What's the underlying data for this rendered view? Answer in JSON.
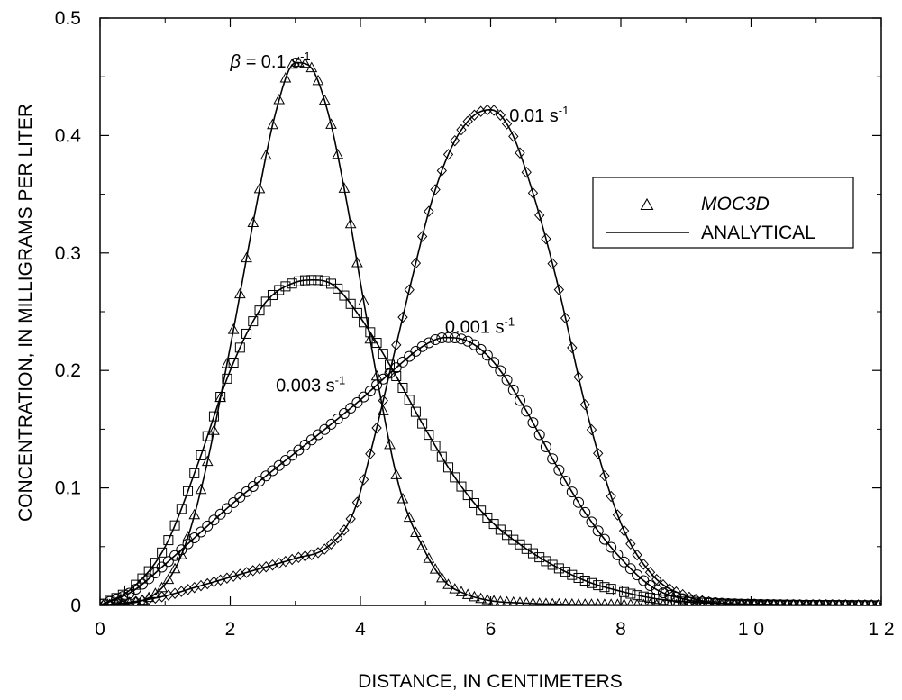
{
  "chart_data": {
    "type": "scatter",
    "title": "",
    "xlabel": "DISTANCE, IN CENTIMETERS",
    "ylabel": "CONCENTRATION, IN MILLIGRAMS PER LITER",
    "xlim": [
      0,
      12
    ],
    "ylim": [
      0,
      0.5
    ],
    "x_ticks": [
      0,
      2,
      4,
      6,
      8,
      10,
      12
    ],
    "x_tick_labels": [
      "0",
      "2",
      "4",
      "6",
      "8",
      "1 0",
      "1 2"
    ],
    "y_ticks": [
      0,
      0.1,
      0.2,
      0.3,
      0.4,
      0.5
    ],
    "y_tick_labels": [
      "0",
      "0.1",
      "0.2",
      "0.3",
      "0.4",
      "0.5"
    ],
    "grid": false,
    "legend": {
      "placement": "right",
      "entries": [
        {
          "label": "MOC3D",
          "symbol": "triangle"
        },
        {
          "label": "ANALYTICAL",
          "symbol": "line"
        }
      ]
    },
    "series": [
      {
        "annotation": {
          "prefix": "β = ",
          "text": "0.1 s",
          "sup": "-1"
        },
        "marker": "triangle",
        "analytical": {
          "x": [
            0,
            0.5,
            1,
            1.3,
            1.6,
            2,
            2.4,
            2.7,
            3,
            3.2,
            3.5,
            3.8,
            4,
            4.3,
            4.6,
            5,
            5.3,
            5.6,
            6,
            6.5,
            7,
            8,
            9,
            10,
            12
          ],
          "y": [
            0,
            0.002,
            0.018,
            0.05,
            0.11,
            0.22,
            0.34,
            0.42,
            0.462,
            0.46,
            0.42,
            0.34,
            0.275,
            0.18,
            0.1,
            0.045,
            0.02,
            0.01,
            0.004,
            0.002,
            0.001,
            0.0005,
            0.0002,
            0.0001,
            0
          ]
        }
      },
      {
        "annotation": {
          "prefix": "",
          "text": "0.01 s",
          "sup": "-1"
        },
        "marker": "square",
        "analytical": {
          "x": [
            0,
            0.5,
            1,
            1.5,
            2,
            2.5,
            3,
            3.3,
            3.6,
            4,
            4.5,
            5,
            5.5,
            6,
            6.5,
            7,
            7.5,
            8,
            8.5,
            9,
            10,
            12
          ],
          "y": [
            0,
            0.015,
            0.05,
            0.12,
            0.2,
            0.255,
            0.275,
            0.277,
            0.272,
            0.245,
            0.2,
            0.15,
            0.105,
            0.072,
            0.05,
            0.033,
            0.02,
            0.012,
            0.006,
            0.003,
            0.001,
            0
          ]
        }
      },
      {
        "annotation": {
          "prefix": "",
          "text": "0.003 s",
          "sup": "-1"
        },
        "marker": "circle",
        "analytical": {
          "x": [
            0,
            0.5,
            1,
            1.5,
            2,
            2.5,
            3,
            3.5,
            4,
            4.5,
            5,
            5.3,
            5.6,
            6,
            6.5,
            7,
            7.5,
            8,
            8.5,
            9,
            9.5,
            10,
            12
          ],
          "y": [
            0,
            0.012,
            0.035,
            0.06,
            0.085,
            0.108,
            0.13,
            0.152,
            0.175,
            0.2,
            0.222,
            0.228,
            0.226,
            0.21,
            0.17,
            0.12,
            0.075,
            0.04,
            0.015,
            0.005,
            0.002,
            0.001,
            0
          ]
        }
      },
      {
        "annotation": {
          "prefix": "",
          "text": "0.001 s",
          "sup": "-1"
        },
        "marker": "diamond",
        "analytical": {
          "x": [
            0,
            0.5,
            1,
            1.5,
            2,
            2.5,
            3,
            3.5,
            3.9,
            4.2,
            4.5,
            4.8,
            5.1,
            5.4,
            5.7,
            6,
            6.3,
            6.6,
            7,
            7.5,
            8,
            8.5,
            9,
            9.5,
            10,
            12
          ],
          "y": [
            0,
            0.003,
            0.008,
            0.016,
            0.024,
            0.032,
            0.04,
            0.05,
            0.08,
            0.14,
            0.21,
            0.28,
            0.345,
            0.39,
            0.415,
            0.422,
            0.405,
            0.36,
            0.28,
            0.16,
            0.07,
            0.025,
            0.008,
            0.002,
            0.001,
            0
          ]
        }
      }
    ]
  }
}
